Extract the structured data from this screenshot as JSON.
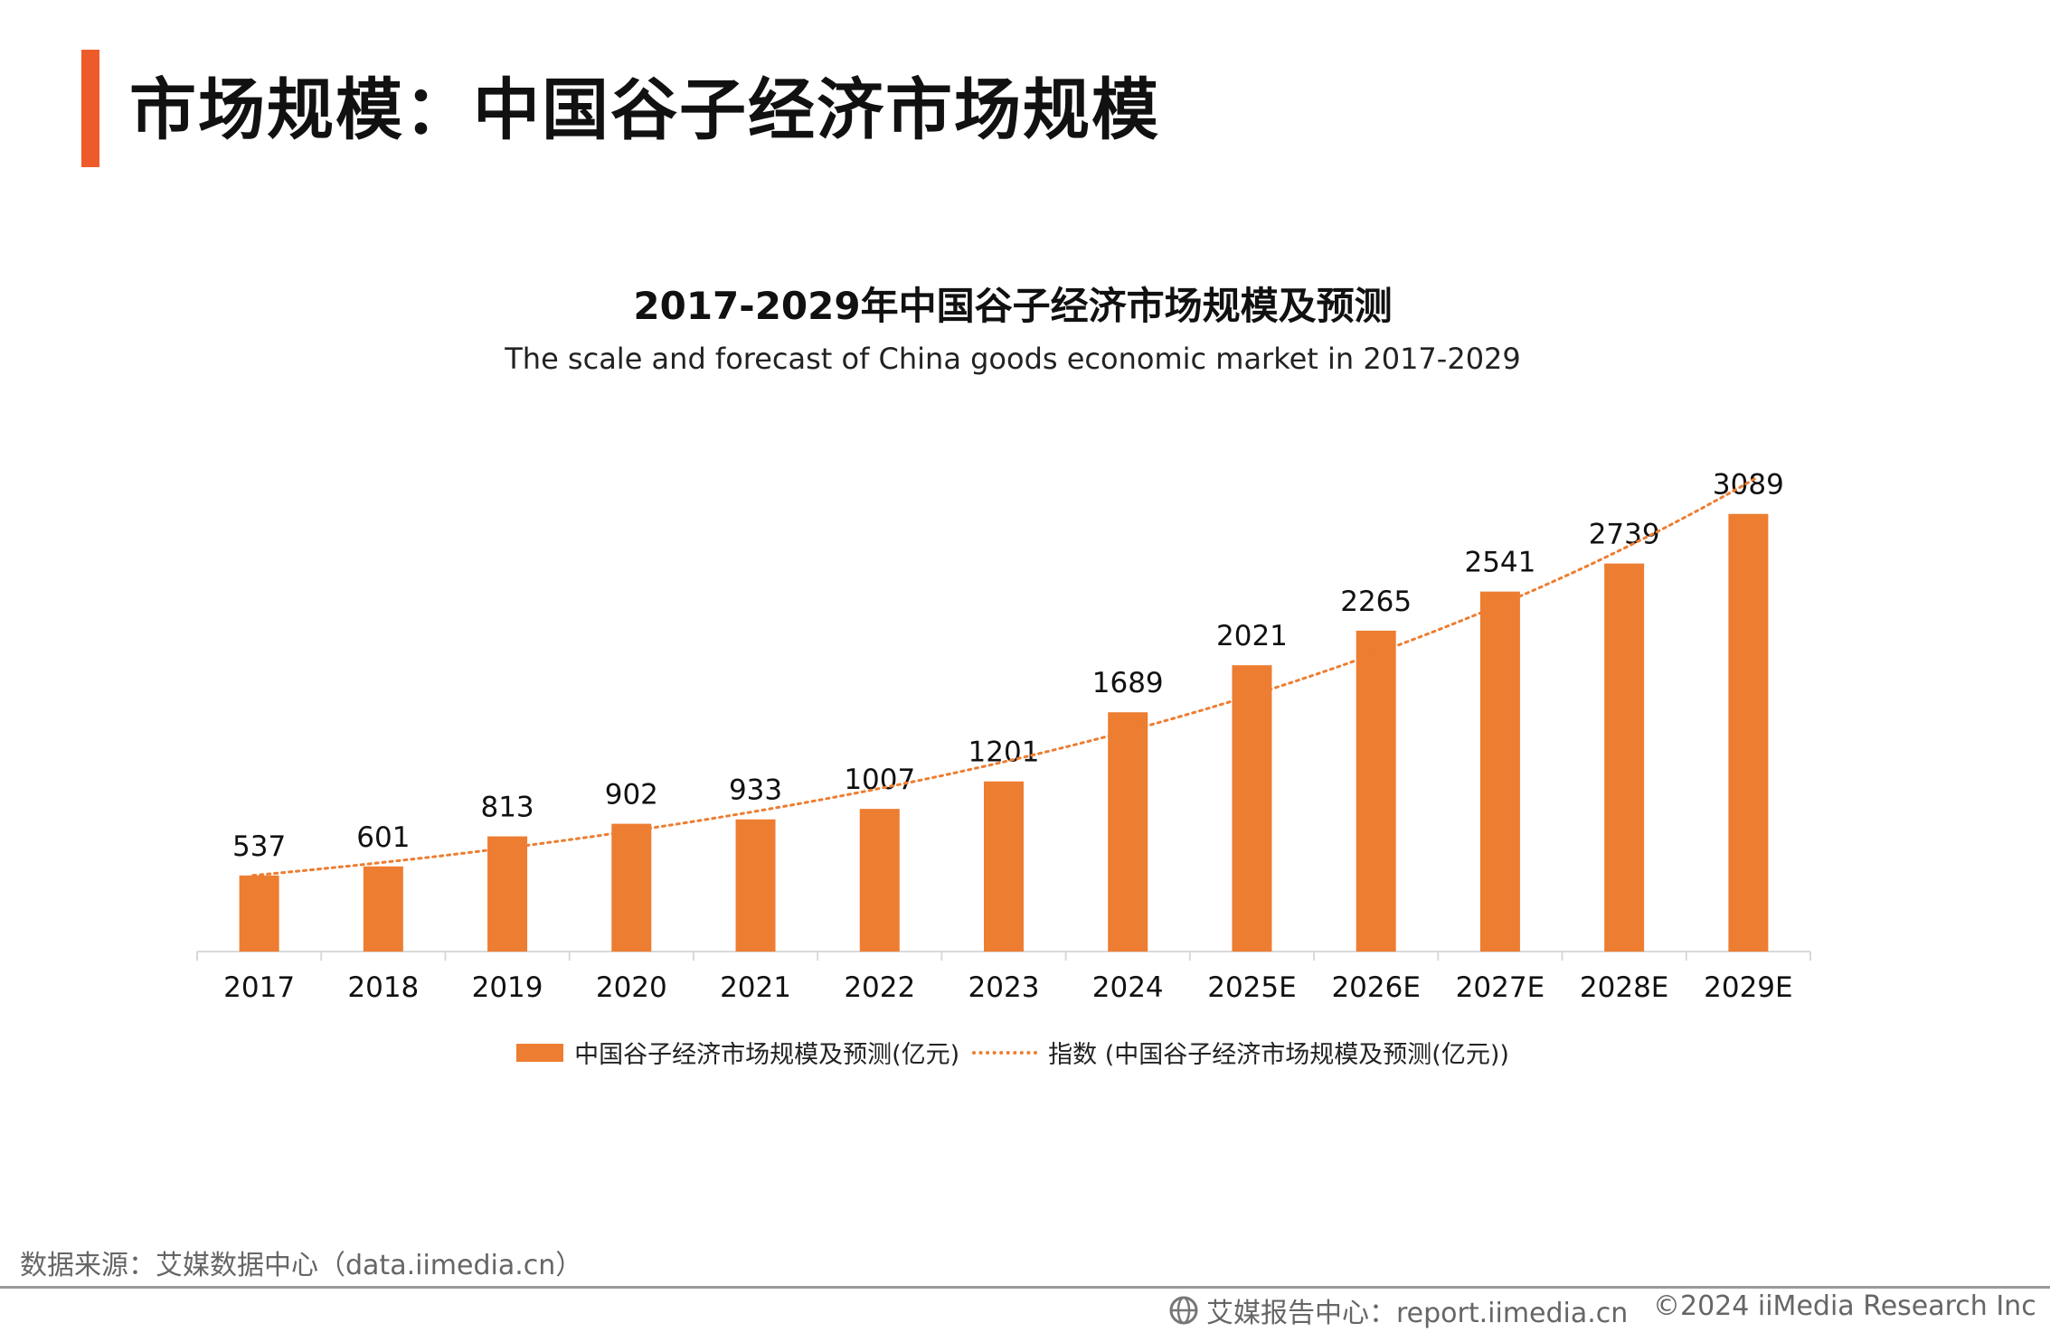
{
  "page": {
    "title": "市场规模：中国谷子经济市场规模"
  },
  "chart_data": {
    "type": "bar",
    "title": "2017-2029年中国谷子经济市场规模及预测",
    "subtitle": "The scale and forecast of China goods economic market in 2017-2029",
    "categories": [
      "2017",
      "2018",
      "2019",
      "2020",
      "2021",
      "2022",
      "2023",
      "2024",
      "2025E",
      "2026E",
      "2027E",
      "2028E",
      "2029E"
    ],
    "values": [
      537,
      601,
      813,
      902,
      933,
      1007,
      1201,
      1689,
      2021,
      2265,
      2541,
      2739,
      3089
    ],
    "series": [
      {
        "name": "中国谷子经济市场规模及预测(亿元)",
        "type": "bar",
        "values": [
          537,
          601,
          813,
          902,
          933,
          1007,
          1201,
          1689,
          2021,
          2265,
          2541,
          2739,
          3089
        ]
      }
    ],
    "trendline": {
      "name": "指数 (中国谷子经济市场规模及预测(亿元))",
      "type": "exponential"
    },
    "ylim": [
      0,
      3100
    ],
    "xlabel": "",
    "ylabel": "",
    "grid": false,
    "legend": "bottom"
  },
  "legend": {
    "bar_label": "中国谷子经济市场规模及预测(亿元)",
    "trend_label": "指数 (中国谷子经济市场规模及预测(亿元))"
  },
  "source": {
    "text": "数据来源：艾媒数据中心（data.iimedia.cn）"
  },
  "footer": {
    "report": "艾媒报告中心：report.iimedia.cn",
    "copyright": "©2024  iiMedia Research Inc"
  },
  "colors": {
    "accent": "#ee5b2b",
    "bar": "#ed7d31",
    "axis": "#d9d9d9",
    "text_muted": "#666666"
  }
}
